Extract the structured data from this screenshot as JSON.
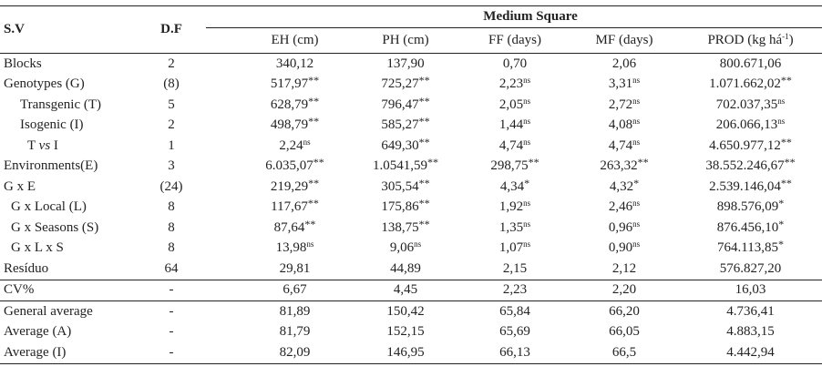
{
  "header": {
    "sv": "S.V",
    "df": "D.F",
    "group": "Medium Square",
    "columns": [
      "EH (cm)",
      "PH (cm)",
      "FF (days)",
      "MF (days)",
      "PROD (kg há",
      "-1",
      ")"
    ]
  },
  "rows": [
    {
      "label": "Blocks",
      "indent": 0,
      "df": "2",
      "cells": [
        [
          "340,12",
          ""
        ],
        [
          "137,90",
          ""
        ],
        [
          "0,70",
          ""
        ],
        [
          "2,06",
          ""
        ],
        [
          "800.671,06",
          ""
        ]
      ]
    },
    {
      "label": "Genotypes  (G)",
      "indent": 0,
      "df": "(8)",
      "cells": [
        [
          "517,97",
          "**"
        ],
        [
          "725,27",
          "**"
        ],
        [
          "2,23",
          "ns"
        ],
        [
          "3,31",
          "ns"
        ],
        [
          "1.071.662,02",
          "**"
        ]
      ]
    },
    {
      "label": "Transgenic (T)",
      "indent": 1,
      "df": "5",
      "cells": [
        [
          "628,79",
          "**"
        ],
        [
          "796,47",
          "**"
        ],
        [
          "2,05",
          "ns"
        ],
        [
          "2,72",
          "ns"
        ],
        [
          "702.037,35",
          "ns"
        ]
      ]
    },
    {
      "label": "Isogenic (I)",
      "indent": 1,
      "df": "2",
      "cells": [
        [
          "498,79",
          "**"
        ],
        [
          "585,27",
          "**"
        ],
        [
          "1,44",
          "ns"
        ],
        [
          "4,08",
          "ns"
        ],
        [
          "206.066,13",
          "ns"
        ]
      ]
    },
    {
      "label": "T vs I",
      "indent": 2,
      "df": "1",
      "cells": [
        [
          "2,24",
          "ns"
        ],
        [
          "649,30",
          "**"
        ],
        [
          "4,74",
          "ns"
        ],
        [
          "4,74",
          "ns"
        ],
        [
          "4.650.977,12",
          "**"
        ]
      ]
    },
    {
      "label": "Environments(E)",
      "indent": 0,
      "df": "3",
      "cells": [
        [
          "6.035,07",
          "**"
        ],
        [
          "1.0541,59",
          "**"
        ],
        [
          "298,75",
          "**"
        ],
        [
          "263,32",
          "**"
        ],
        [
          "38.552.246,67",
          "**"
        ]
      ]
    },
    {
      "label": "G x E",
      "indent": 0,
      "df": "(24)",
      "cells": [
        [
          "219,29",
          "**"
        ],
        [
          "305,54",
          "**"
        ],
        [
          "4,34",
          "*"
        ],
        [
          "4,32",
          "*"
        ],
        [
          "2.539.146,04",
          "**"
        ]
      ]
    },
    {
      "label": "G x Local (L)",
      "indent": 3,
      "df": "8",
      "cells": [
        [
          "117,67",
          "**"
        ],
        [
          "175,86",
          "**"
        ],
        [
          "1,92",
          "ns"
        ],
        [
          "2,46",
          "ns"
        ],
        [
          "898.576,09",
          "*"
        ]
      ]
    },
    {
      "label": "G x Seasons (S)",
      "indent": 3,
      "df": "8",
      "cells": [
        [
          "87,64",
          "**"
        ],
        [
          "138,75",
          "**"
        ],
        [
          "1,35",
          "ns"
        ],
        [
          "0,96",
          "ns"
        ],
        [
          "876.456,10",
          "*"
        ]
      ]
    },
    {
      "label": "G x L x S",
      "indent": 3,
      "df": "8",
      "cells": [
        [
          "13,98",
          "ns"
        ],
        [
          "9,06",
          "ns"
        ],
        [
          "1,07",
          "ns"
        ],
        [
          "0,90",
          "ns"
        ],
        [
          "764.113,85",
          "*"
        ]
      ]
    },
    {
      "label": "Resíduo",
      "indent": 0,
      "df": "64",
      "cells": [
        [
          "29,81",
          ""
        ],
        [
          "44,89",
          ""
        ],
        [
          "2,15",
          ""
        ],
        [
          "2,12",
          ""
        ],
        [
          "576.827,20",
          ""
        ]
      ]
    },
    {
      "label": "CV%",
      "indent": 0,
      "df": "-",
      "sep": true,
      "cells": [
        [
          "6,67",
          ""
        ],
        [
          "4,45",
          ""
        ],
        [
          "2,23",
          ""
        ],
        [
          "2,20",
          ""
        ],
        [
          "16,03",
          ""
        ]
      ]
    },
    {
      "label": "General average",
      "indent": 0,
      "df": "-",
      "sep": true,
      "cells": [
        [
          "81,89",
          ""
        ],
        [
          "150,42",
          ""
        ],
        [
          "65,84",
          ""
        ],
        [
          "66,20",
          ""
        ],
        [
          "4.736,41",
          ""
        ]
      ]
    },
    {
      "label": "Average (A)",
      "indent": 0,
      "df": "-",
      "cells": [
        [
          "81,79",
          ""
        ],
        [
          "152,15",
          ""
        ],
        [
          "65,69",
          ""
        ],
        [
          "66,05",
          ""
        ],
        [
          "4.883,15",
          ""
        ]
      ]
    },
    {
      "label": "Average (I)",
      "indent": 0,
      "df": "-",
      "cells": [
        [
          "82,09",
          ""
        ],
        [
          "146,95",
          ""
        ],
        [
          "66,13",
          ""
        ],
        [
          "66,5",
          ""
        ],
        [
          "4.442,94",
          ""
        ]
      ]
    }
  ]
}
